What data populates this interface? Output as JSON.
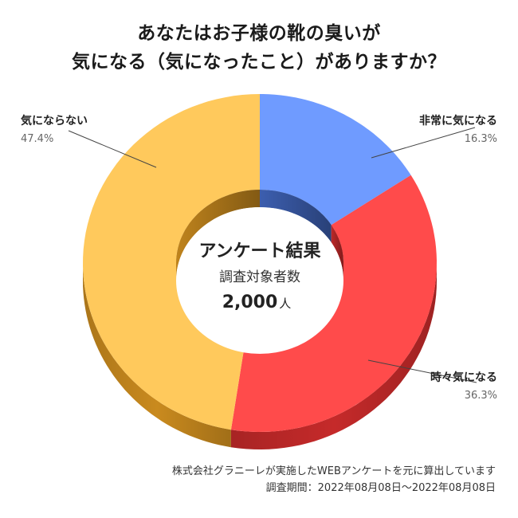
{
  "title_line1": "あなたはお子様の靴の臭いが",
  "title_line2": "気になる（気になったこと）がありますか？",
  "chart_data": {
    "type": "pie",
    "variant": "3d-donut",
    "categories": [
      "非常に気になる",
      "時々気になる",
      "気にならない"
    ],
    "values": [
      16.3,
      36.3,
      47.4
    ],
    "value_labels": [
      "16.3%",
      "36.3%",
      "47.4%"
    ],
    "colors": [
      "#6f9bff",
      "#ff4b4b",
      "#ffc95c"
    ],
    "side_colors": [
      "#3f63b8",
      "#c52a2a",
      "#c98a1e"
    ],
    "center": {
      "title": "アンケート結果",
      "subtitle": "調査対象者数",
      "count": "2,000",
      "unit": "人"
    }
  },
  "footer": {
    "note": "株式会社グラニーレが実施したWEBアンケートを元に算出しています",
    "period": "調査期間：2022年08月08日〜2022年08月08日"
  }
}
